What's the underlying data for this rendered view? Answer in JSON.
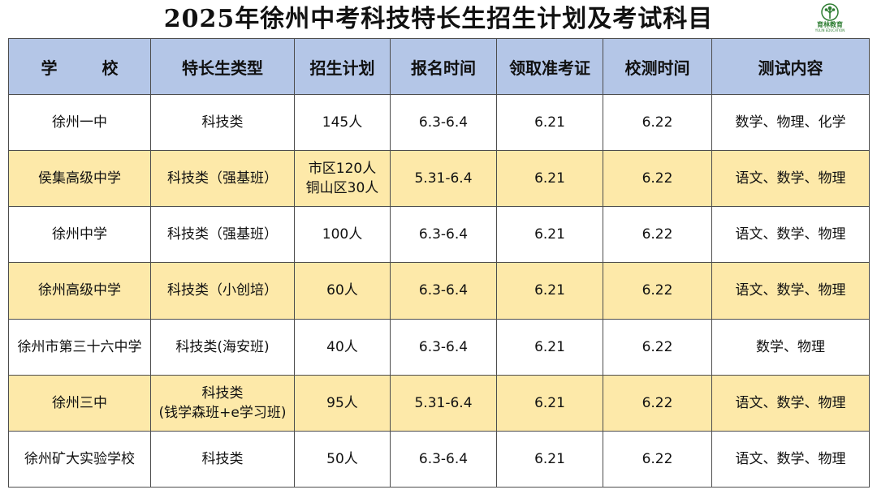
{
  "title": "2025年徐州中考科技特长生招生计划及考试科目",
  "logo": {
    "text": "育林教育",
    "sub": "YULIN EDUCATION"
  },
  "table": {
    "headers": [
      "学 校",
      "特长生类型",
      "招生计划",
      "报名时间",
      "领取准考证",
      "校测时间",
      "测试内容"
    ],
    "rows": [
      {
        "school": "徐州一中",
        "type": "科技类",
        "type2": "",
        "plan": "145人",
        "plan2": "",
        "reg": "6.3-6.4",
        "ticket": "6.21",
        "test": "6.22",
        "content": "数学、物理、化学"
      },
      {
        "school": "侯集高级中学",
        "type": "科技类（强基班）",
        "type2": "",
        "plan": "市区120人",
        "plan2": "铜山区30人",
        "reg": "5.31-6.4",
        "ticket": "6.21",
        "test": "6.22",
        "content": "语文、数学、物理"
      },
      {
        "school": "徐州中学",
        "type": "科技类（强基班）",
        "type2": "",
        "plan": "100人",
        "plan2": "",
        "reg": "6.3-6.4",
        "ticket": "6.21",
        "test": "6.22",
        "content": "语文、数学、物理"
      },
      {
        "school": "徐州高级中学",
        "type": "科技类（小创培）",
        "type2": "",
        "plan": "60人",
        "plan2": "",
        "reg": "6.3-6.4",
        "ticket": "6.21",
        "test": "6.22",
        "content": "语文、数学、物理"
      },
      {
        "school": "徐州市第三十六中学",
        "type": "科技类(海安班)",
        "type2": "",
        "plan": "40人",
        "plan2": "",
        "reg": "6.3-6.4",
        "ticket": "6.21",
        "test": "6.22",
        "content": "数学、物理"
      },
      {
        "school": "徐州三中",
        "type": "科技类",
        "type2": "(钱学森班+e学习班)",
        "plan": "95人",
        "plan2": "",
        "reg": "5.31-6.4",
        "ticket": "6.21",
        "test": "6.22",
        "content": "语文、数学、物理"
      },
      {
        "school": "徐州矿大实验学校",
        "type": "科技类",
        "type2": "",
        "plan": "50人",
        "plan2": "",
        "reg": "6.3-6.4",
        "ticket": "6.21",
        "test": "6.22",
        "content": "语文、数学、物理"
      }
    ]
  },
  "colors": {
    "header_bg": "#b4c6e7",
    "alt_row_bg": "#fde9a9",
    "border": "#4d4d4d",
    "logo_green": "#2e7d32"
  }
}
